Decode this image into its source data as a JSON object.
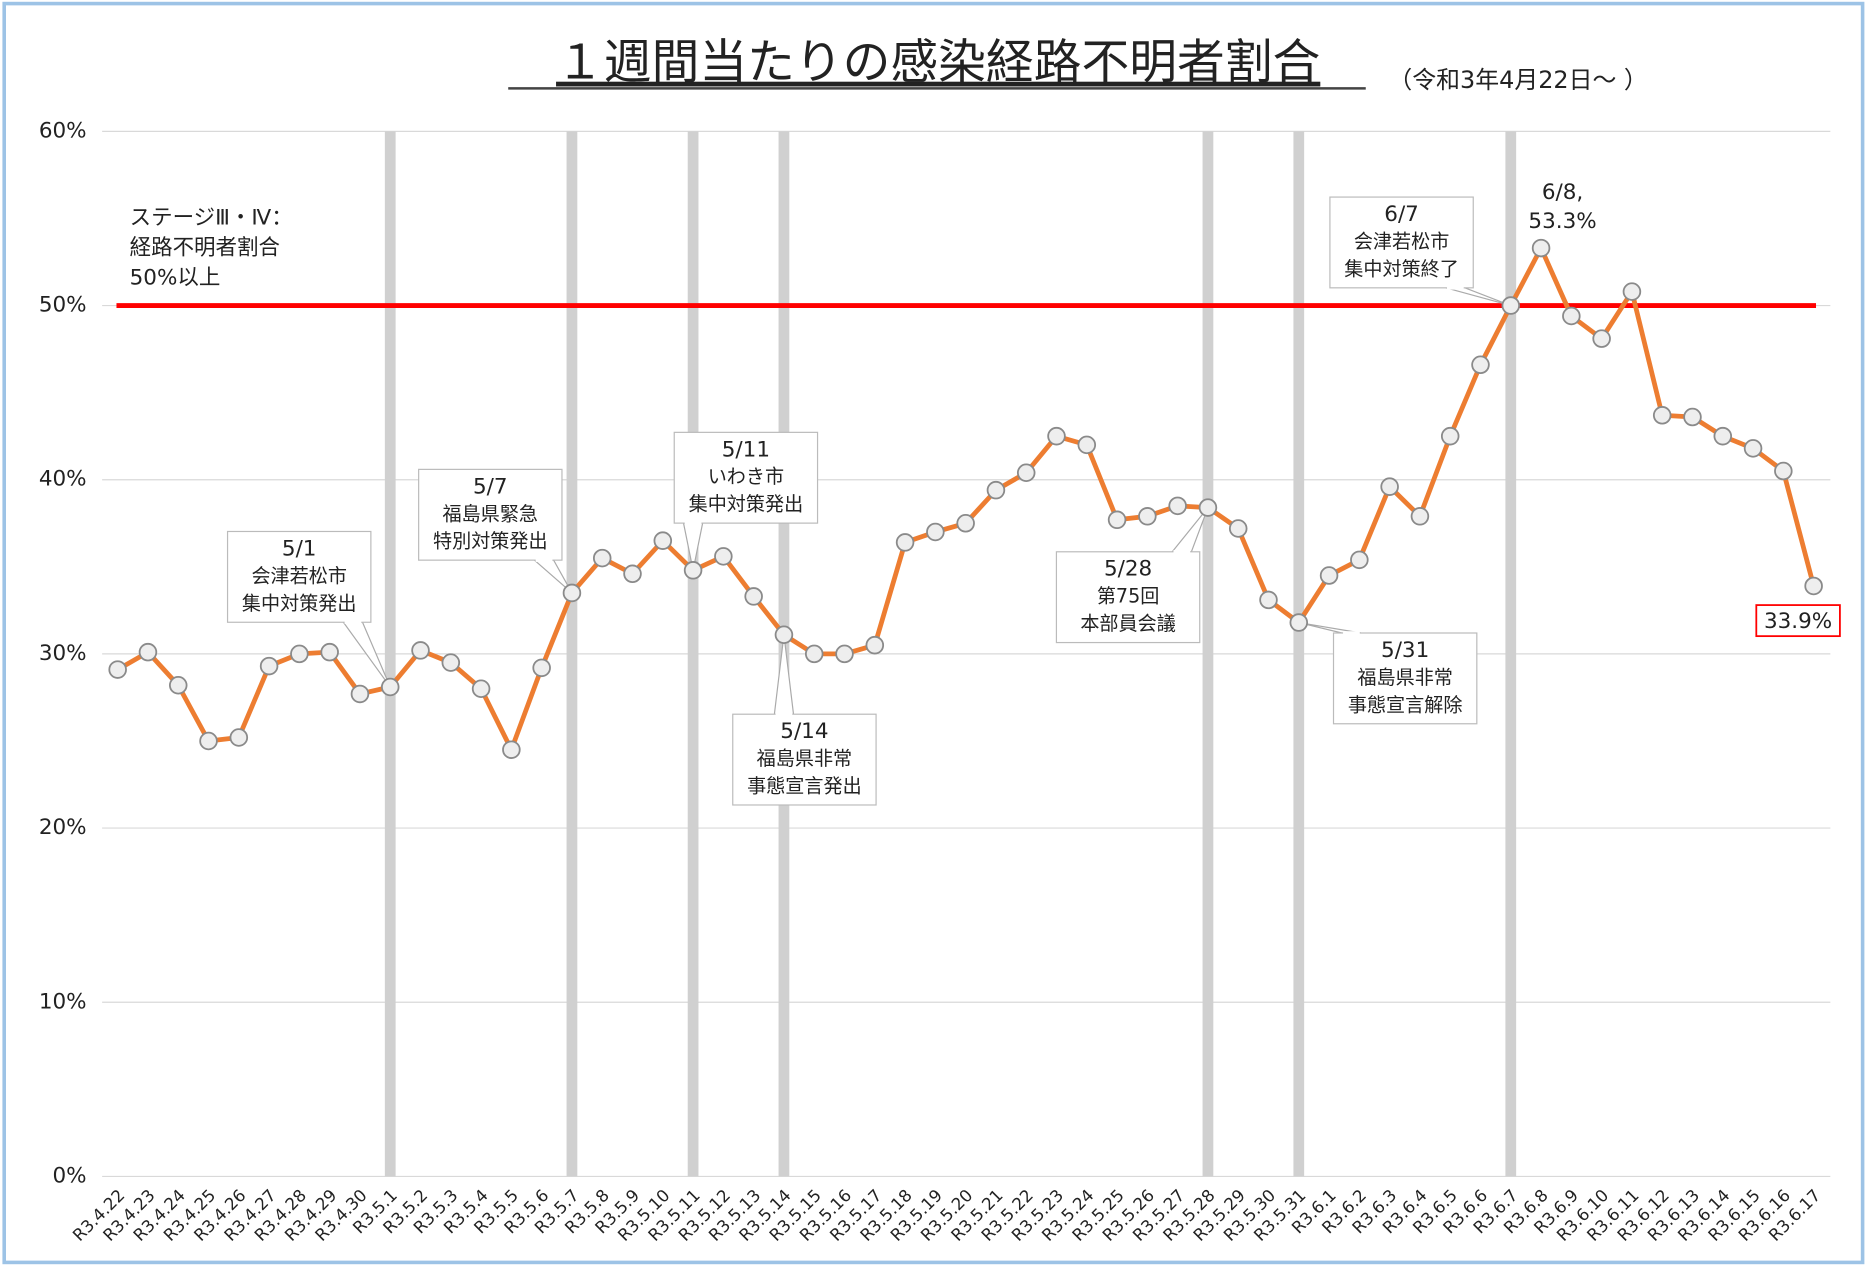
{
  "chart_data": {
    "type": "line",
    "title": "１週間当たりの感染経路不明者割合",
    "subtitle": "（令和3年4月22日～ ）",
    "categories": [
      "R3.4.22",
      "R3.4.23",
      "R3.4.24",
      "R3.4.25",
      "R3.4.26",
      "R3.4.27",
      "R3.4.28",
      "R3.4.29",
      "R3.4.30",
      "R3.5.1",
      "R3.5.2",
      "R3.5.3",
      "R3.5.4",
      "R3.5.5",
      "R3.5.6",
      "R3.5.7",
      "R3.5.8",
      "R3.5.9",
      "R3.5.10",
      "R3.5.11",
      "R3.5.12",
      "R3.5.13",
      "R3.5.14",
      "R3.5.15",
      "R3.5.16",
      "R3.5.17",
      "R3.5.18",
      "R3.5.19",
      "R3.5.20",
      "R3.5.21",
      "R3.5.22",
      "R3.5.23",
      "R3.5.24",
      "R3.5.25",
      "R3.5.26",
      "R3.5.27",
      "R3.5.28",
      "R3.5.29",
      "R3.5.30",
      "R3.5.31",
      "R3.6.1",
      "R3.6.2",
      "R3.6.3",
      "R3.6.4",
      "R3.6.5",
      "R3.6.6",
      "R3.6.7",
      "R3.6.8",
      "R3.6.9",
      "R3.6.10",
      "R3.6.11",
      "R3.6.12",
      "R3.6.13",
      "R3.6.14",
      "R3.6.15",
      "R3.6.16",
      "R3.6.17"
    ],
    "series": [
      {
        "name": "経路不明者割合",
        "color": "#ed7d31",
        "values": [
          29.1,
          30.1,
          28.2,
          25.0,
          25.2,
          29.3,
          30.0,
          30.1,
          27.7,
          28.1,
          30.2,
          29.5,
          28.0,
          24.5,
          29.2,
          33.5,
          35.5,
          34.6,
          36.5,
          34.8,
          35.6,
          33.3,
          31.1,
          30.0,
          30.0,
          30.5,
          36.4,
          37.0,
          37.5,
          39.4,
          40.4,
          42.5,
          42.0,
          37.7,
          37.9,
          38.5,
          38.4,
          37.2,
          33.1,
          31.8,
          34.5,
          35.4,
          39.6,
          37.9,
          42.5,
          46.6,
          50.0,
          53.3,
          49.4,
          48.1,
          50.8,
          43.7,
          43.6,
          42.5,
          41.8,
          40.5,
          33.9
        ],
        "value_labels": [
          null,
          null,
          null,
          null,
          null,
          null,
          null,
          null,
          null,
          null,
          null,
          null,
          null,
          null,
          null,
          null,
          null,
          null,
          null,
          null,
          null,
          null,
          null,
          null,
          null,
          null,
          null,
          null,
          null,
          null,
          null,
          null,
          null,
          null,
          null,
          null,
          null,
          null,
          null,
          null,
          null,
          null,
          null,
          null,
          null,
          null,
          null,
          "53.3%",
          null,
          null,
          null,
          null,
          null,
          null,
          null,
          null,
          "33.9%"
        ]
      }
    ],
    "peak_date_label": "6/8,",
    "ylim": [
      0,
      60
    ],
    "yticks": [
      {
        "value": 0,
        "label": "0%"
      },
      {
        "value": 10,
        "label": "10%"
      },
      {
        "value": 20,
        "label": "20%"
      },
      {
        "value": 30,
        "label": "30%"
      },
      {
        "value": 40,
        "label": "40%"
      },
      {
        "value": 50,
        "label": "50%"
      },
      {
        "value": 60,
        "label": "60%"
      }
    ],
    "grid": true,
    "threshold": {
      "value": 50,
      "color": "#ff0000",
      "label": [
        "ステージⅢ・Ⅳ：",
        "経路不明者割合",
        "50%以上"
      ]
    },
    "annotations": [
      {
        "index": 9,
        "lines": [
          "5/1",
          "会津若松市",
          "集中対策発出"
        ]
      },
      {
        "index": 15,
        "lines": [
          "5/7",
          "福島県緊急",
          "特別対策発出"
        ]
      },
      {
        "index": 19,
        "lines": [
          "5/11",
          "いわき市",
          "集中対策発出"
        ]
      },
      {
        "index": 22,
        "lines": [
          "5/14",
          "福島県非常",
          "事態宣言発出"
        ]
      },
      {
        "index": 36,
        "lines": [
          "5/28",
          "第75回",
          "本部員会議"
        ]
      },
      {
        "index": 39,
        "lines": [
          "5/31",
          "福島県非常",
          "事態宣言解除"
        ]
      },
      {
        "index": 46,
        "lines": [
          "6/7",
          "会津若松市",
          "集中対策終了"
        ]
      }
    ]
  }
}
